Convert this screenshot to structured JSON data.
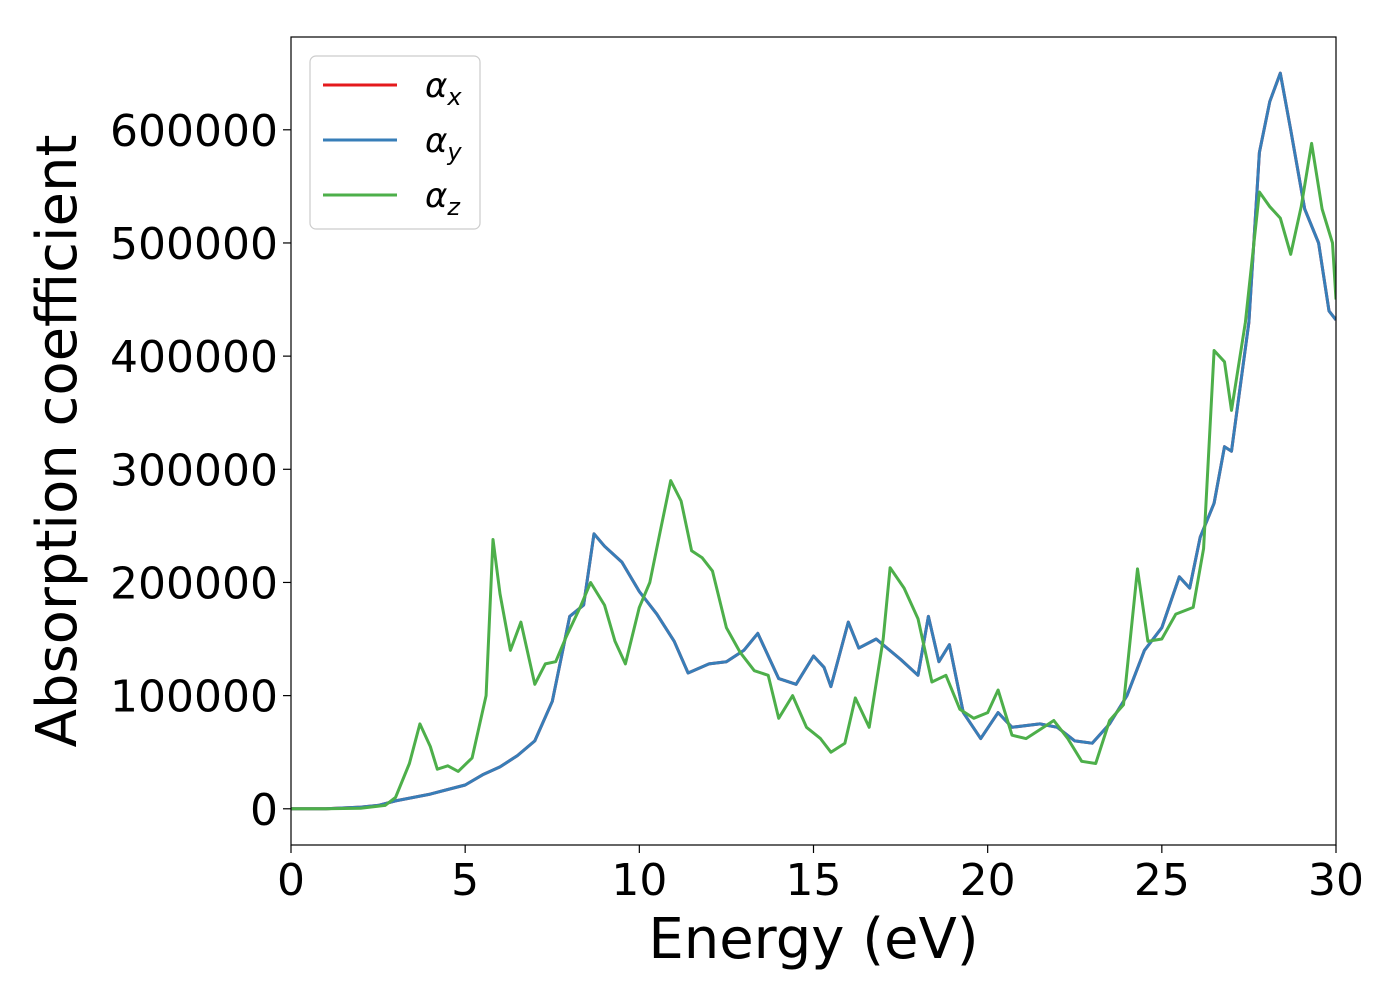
{
  "chart_data": {
    "type": "line",
    "title": "",
    "xlabel": "Energy (eV)",
    "ylabel": "Absorption coefficient",
    "xlim": [
      0,
      30
    ],
    "ylim": [
      -32000,
      682000
    ],
    "xticks": [
      0,
      5,
      10,
      15,
      20,
      25,
      30
    ],
    "xtick_labels": [
      "0",
      "5",
      "10",
      "15",
      "20",
      "25",
      "30"
    ],
    "yticks": [
      0,
      100000,
      200000,
      300000,
      400000,
      500000,
      600000
    ],
    "ytick_labels": [
      "0",
      "100000",
      "200000",
      "300000",
      "400000",
      "500000",
      "600000"
    ],
    "legend_position": "top-left",
    "series": [
      {
        "name": "α",
        "subscript": "x",
        "color": "#e41a1c",
        "points": [
          [
            0,
            0
          ],
          [
            1,
            0
          ],
          [
            2,
            1500
          ],
          [
            2.5,
            3000
          ],
          [
            3,
            7000
          ],
          [
            3.5,
            10000
          ],
          [
            4,
            13000
          ],
          [
            4.5,
            17000
          ],
          [
            5,
            21000
          ],
          [
            5.5,
            30000
          ],
          [
            6,
            37000
          ],
          [
            6.5,
            47000
          ],
          [
            7,
            60000
          ],
          [
            7.5,
            95000
          ],
          [
            8,
            170000
          ],
          [
            8.4,
            180000
          ],
          [
            8.7,
            243000
          ],
          [
            9,
            232000
          ],
          [
            9.5,
            218000
          ],
          [
            10,
            192000
          ],
          [
            10.5,
            172000
          ],
          [
            11,
            148000
          ],
          [
            11.4,
            120000
          ],
          [
            12,
            128000
          ],
          [
            12.5,
            130000
          ],
          [
            13,
            140000
          ],
          [
            13.4,
            155000
          ],
          [
            14,
            115000
          ],
          [
            14.5,
            110000
          ],
          [
            15,
            135000
          ],
          [
            15.3,
            125000
          ],
          [
            15.5,
            108000
          ],
          [
            16,
            165000
          ],
          [
            16.3,
            142000
          ],
          [
            16.8,
            150000
          ],
          [
            17.5,
            132000
          ],
          [
            18,
            118000
          ],
          [
            18.3,
            170000
          ],
          [
            18.6,
            130000
          ],
          [
            18.9,
            145000
          ],
          [
            19.3,
            85000
          ],
          [
            19.8,
            62000
          ],
          [
            20.3,
            85000
          ],
          [
            20.7,
            72000
          ],
          [
            21.5,
            75000
          ],
          [
            22,
            72000
          ],
          [
            22.5,
            60000
          ],
          [
            23,
            58000
          ],
          [
            23.5,
            75000
          ],
          [
            24,
            100000
          ],
          [
            24.5,
            140000
          ],
          [
            25,
            160000
          ],
          [
            25.5,
            205000
          ],
          [
            25.8,
            195000
          ],
          [
            26.1,
            240000
          ],
          [
            26.5,
            270000
          ],
          [
            26.8,
            320000
          ],
          [
            27,
            316000
          ],
          [
            27.5,
            430000
          ],
          [
            27.8,
            580000
          ],
          [
            28.1,
            625000
          ],
          [
            28.4,
            650000
          ],
          [
            28.7,
            600000
          ],
          [
            29.1,
            530000
          ],
          [
            29.5,
            500000
          ],
          [
            29.8,
            440000
          ],
          [
            30,
            432000
          ]
        ]
      },
      {
        "name": "α",
        "subscript": "y",
        "color": "#377eb8",
        "points": [
          [
            0,
            0
          ],
          [
            1,
            0
          ],
          [
            2,
            1500
          ],
          [
            2.5,
            3000
          ],
          [
            3,
            7000
          ],
          [
            3.5,
            10000
          ],
          [
            4,
            13000
          ],
          [
            4.5,
            17000
          ],
          [
            5,
            21000
          ],
          [
            5.5,
            30000
          ],
          [
            6,
            37000
          ],
          [
            6.5,
            47000
          ],
          [
            7,
            60000
          ],
          [
            7.5,
            95000
          ],
          [
            8,
            170000
          ],
          [
            8.4,
            180000
          ],
          [
            8.7,
            243000
          ],
          [
            9,
            232000
          ],
          [
            9.5,
            218000
          ],
          [
            10,
            192000
          ],
          [
            10.5,
            172000
          ],
          [
            11,
            148000
          ],
          [
            11.4,
            120000
          ],
          [
            12,
            128000
          ],
          [
            12.5,
            130000
          ],
          [
            13,
            140000
          ],
          [
            13.4,
            155000
          ],
          [
            14,
            115000
          ],
          [
            14.5,
            110000
          ],
          [
            15,
            135000
          ],
          [
            15.3,
            125000
          ],
          [
            15.5,
            108000
          ],
          [
            16,
            165000
          ],
          [
            16.3,
            142000
          ],
          [
            16.8,
            150000
          ],
          [
            17.5,
            132000
          ],
          [
            18,
            118000
          ],
          [
            18.3,
            170000
          ],
          [
            18.6,
            130000
          ],
          [
            18.9,
            145000
          ],
          [
            19.3,
            85000
          ],
          [
            19.8,
            62000
          ],
          [
            20.3,
            85000
          ],
          [
            20.7,
            72000
          ],
          [
            21.5,
            75000
          ],
          [
            22,
            72000
          ],
          [
            22.5,
            60000
          ],
          [
            23,
            58000
          ],
          [
            23.5,
            75000
          ],
          [
            24,
            100000
          ],
          [
            24.5,
            140000
          ],
          [
            25,
            160000
          ],
          [
            25.5,
            205000
          ],
          [
            25.8,
            195000
          ],
          [
            26.1,
            240000
          ],
          [
            26.5,
            270000
          ],
          [
            26.8,
            320000
          ],
          [
            27,
            316000
          ],
          [
            27.5,
            430000
          ],
          [
            27.8,
            580000
          ],
          [
            28.1,
            625000
          ],
          [
            28.4,
            650000
          ],
          [
            28.7,
            600000
          ],
          [
            29.1,
            530000
          ],
          [
            29.5,
            500000
          ],
          [
            29.8,
            440000
          ],
          [
            30,
            432000
          ]
        ]
      },
      {
        "name": "α",
        "subscript": "z",
        "color": "#4daf4a",
        "points": [
          [
            0,
            0
          ],
          [
            1,
            0
          ],
          [
            2,
            500
          ],
          [
            2.7,
            3000
          ],
          [
            3,
            10000
          ],
          [
            3.4,
            40000
          ],
          [
            3.7,
            75000
          ],
          [
            4,
            55000
          ],
          [
            4.2,
            35000
          ],
          [
            4.5,
            38000
          ],
          [
            4.8,
            33000
          ],
          [
            5.2,
            45000
          ],
          [
            5.6,
            100000
          ],
          [
            5.8,
            238000
          ],
          [
            6,
            190000
          ],
          [
            6.3,
            140000
          ],
          [
            6.6,
            165000
          ],
          [
            7,
            110000
          ],
          [
            7.3,
            128000
          ],
          [
            7.6,
            130000
          ],
          [
            7.9,
            152000
          ],
          [
            8.3,
            178000
          ],
          [
            8.6,
            200000
          ],
          [
            9,
            180000
          ],
          [
            9.3,
            148000
          ],
          [
            9.6,
            128000
          ],
          [
            10,
            178000
          ],
          [
            10.3,
            200000
          ],
          [
            10.6,
            245000
          ],
          [
            10.9,
            290000
          ],
          [
            11.2,
            272000
          ],
          [
            11.5,
            228000
          ],
          [
            11.8,
            222000
          ],
          [
            12.1,
            210000
          ],
          [
            12.5,
            160000
          ],
          [
            12.9,
            138000
          ],
          [
            13.3,
            122000
          ],
          [
            13.7,
            118000
          ],
          [
            14,
            80000
          ],
          [
            14.4,
            100000
          ],
          [
            14.8,
            72000
          ],
          [
            15.2,
            62000
          ],
          [
            15.5,
            50000
          ],
          [
            15.9,
            58000
          ],
          [
            16.2,
            98000
          ],
          [
            16.6,
            72000
          ],
          [
            17,
            150000
          ],
          [
            17.2,
            213000
          ],
          [
            17.6,
            195000
          ],
          [
            18,
            168000
          ],
          [
            18.4,
            112000
          ],
          [
            18.8,
            118000
          ],
          [
            19.2,
            88000
          ],
          [
            19.6,
            80000
          ],
          [
            20,
            85000
          ],
          [
            20.3,
            105000
          ],
          [
            20.7,
            65000
          ],
          [
            21.1,
            62000
          ],
          [
            21.5,
            70000
          ],
          [
            21.9,
            78000
          ],
          [
            22.3,
            62000
          ],
          [
            22.7,
            42000
          ],
          [
            23.1,
            40000
          ],
          [
            23.5,
            78000
          ],
          [
            23.9,
            92000
          ],
          [
            24.3,
            212000
          ],
          [
            24.6,
            148000
          ],
          [
            25,
            150000
          ],
          [
            25.4,
            172000
          ],
          [
            25.9,
            178000
          ],
          [
            26.2,
            230000
          ],
          [
            26.5,
            405000
          ],
          [
            26.8,
            395000
          ],
          [
            27,
            352000
          ],
          [
            27.4,
            430000
          ],
          [
            27.8,
            545000
          ],
          [
            28.1,
            532000
          ],
          [
            28.4,
            522000
          ],
          [
            28.7,
            490000
          ],
          [
            29,
            532000
          ],
          [
            29.3,
            588000
          ],
          [
            29.6,
            530000
          ],
          [
            29.9,
            500000
          ],
          [
            30,
            450000
          ]
        ]
      }
    ]
  }
}
